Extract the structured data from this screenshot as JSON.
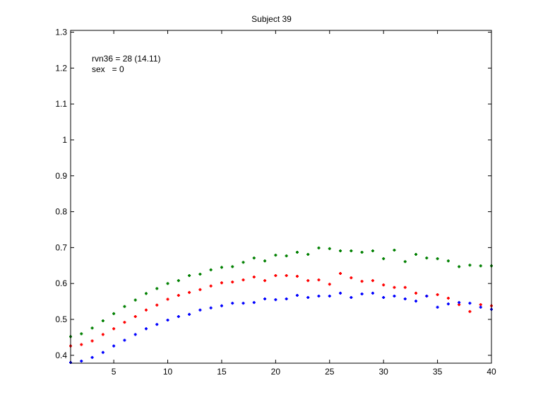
{
  "chart_data": {
    "type": "scatter",
    "title": "Subject 39",
    "xlabel": "",
    "ylabel": "",
    "xlim": [
      1,
      40
    ],
    "ylim": [
      0.378,
      1.305
    ],
    "xticks": [
      5,
      10,
      15,
      20,
      25,
      30,
      35,
      40
    ],
    "yticks": [
      0.4,
      0.5,
      0.6,
      0.7,
      0.8,
      0.9,
      1,
      1.1,
      1.2,
      1.3
    ],
    "ytick_labels": [
      "0.4",
      "0.5",
      "0.6",
      "0.7",
      "0.8",
      "0.9",
      "1",
      "1.1",
      "1.2",
      "1.3"
    ],
    "grid": false,
    "legend": null,
    "annotations": [
      "rvn36 = 28 (14.11)",
      "sex   = 0"
    ],
    "x": [
      1,
      2,
      3,
      4,
      5,
      6,
      7,
      8,
      9,
      10,
      11,
      12,
      13,
      14,
      15,
      16,
      17,
      18,
      19,
      20,
      21,
      22,
      23,
      24,
      25,
      26,
      27,
      28,
      29,
      30,
      31,
      32,
      33,
      34,
      35,
      36,
      37,
      38,
      39,
      40
    ],
    "series": [
      {
        "name": "green",
        "color": "#008000",
        "values": [
          0.452,
          0.46,
          0.476,
          0.496,
          0.516,
          0.536,
          0.554,
          0.572,
          0.586,
          0.6,
          0.608,
          0.622,
          0.626,
          0.638,
          0.645,
          0.647,
          0.659,
          0.671,
          0.663,
          0.679,
          0.677,
          0.687,
          0.681,
          0.699,
          0.697,
          0.691,
          0.691,
          0.687,
          0.691,
          0.669,
          0.693,
          0.661,
          0.681,
          0.671,
          0.669,
          0.663,
          0.647,
          0.651,
          0.649,
          0.649
        ]
      },
      {
        "name": "red",
        "color": "#ff0000",
        "values": [
          0.426,
          0.43,
          0.44,
          0.458,
          0.474,
          0.492,
          0.508,
          0.526,
          0.54,
          0.556,
          0.567,
          0.575,
          0.583,
          0.593,
          0.602,
          0.604,
          0.61,
          0.618,
          0.608,
          0.622,
          0.622,
          0.62,
          0.608,
          0.61,
          0.598,
          0.628,
          0.616,
          0.606,
          0.608,
          0.596,
          0.589,
          0.589,
          0.573,
          0.565,
          0.569,
          0.559,
          0.541,
          0.522,
          0.541,
          0.538
        ]
      },
      {
        "name": "blue",
        "color": "#0000ff",
        "values": [
          0.38,
          0.384,
          0.394,
          0.408,
          0.426,
          0.442,
          0.458,
          0.474,
          0.486,
          0.498,
          0.508,
          0.514,
          0.526,
          0.532,
          0.538,
          0.545,
          0.545,
          0.547,
          0.557,
          0.555,
          0.557,
          0.567,
          0.561,
          0.565,
          0.565,
          0.573,
          0.561,
          0.571,
          0.573,
          0.561,
          0.565,
          0.557,
          0.551,
          0.565,
          0.534,
          0.543,
          0.547,
          0.545,
          0.534,
          0.528
        ]
      }
    ]
  }
}
